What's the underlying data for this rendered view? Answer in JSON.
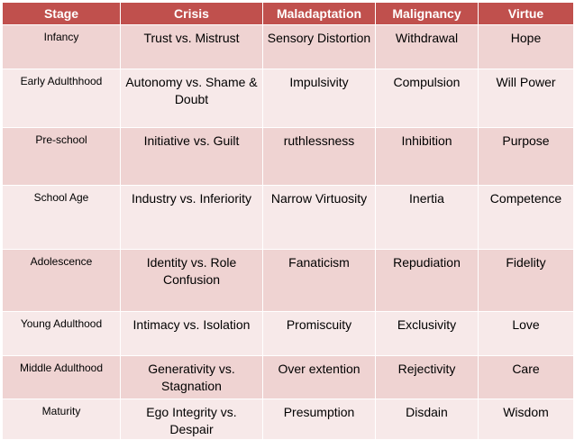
{
  "headers": [
    "Stage",
    "Crisis",
    "Maladaptation",
    "Malignancy",
    "Virtue"
  ],
  "rows": [
    {
      "stage": "Infancy",
      "crisis": "Trust vs. Mistrust",
      "maladaptation": "Sensory Distortion",
      "malignancy": "Withdrawal",
      "virtue": "Hope"
    },
    {
      "stage": "Early Adulthhood",
      "crisis": "Autonomy vs. Shame & Doubt",
      "maladaptation": "Impulsivity",
      "malignancy": "Compulsion",
      "virtue": "Will Power"
    },
    {
      "stage": "Pre-school",
      "crisis": "Initiative vs. Guilt",
      "maladaptation": "ruthlessness",
      "malignancy": "Inhibition",
      "virtue": "Purpose"
    },
    {
      "stage": "School Age",
      "crisis": "Industry vs. Inferiority",
      "maladaptation": "Narrow Virtuosity",
      "malignancy": "Inertia",
      "virtue": "Competence"
    },
    {
      "stage": "Adolescence",
      "crisis": "Identity vs. Role Confusion",
      "maladaptation": "Fanaticism",
      "malignancy": "Repudiation",
      "virtue": "Fidelity"
    },
    {
      "stage": "Young Adulthood",
      "crisis": "Intimacy vs. Isolation",
      "maladaptation": "Promiscuity",
      "malignancy": "Exclusivity",
      "virtue": "Love"
    },
    {
      "stage": "Middle Adulthood",
      "crisis": "Generativity vs. Stagnation",
      "maladaptation": "Over extention",
      "malignancy": "Rejectivity",
      "virtue": "Care"
    },
    {
      "stage": "Maturity",
      "crisis": "Ego Integrity vs. Despair",
      "maladaptation": "Presumption",
      "malignancy": "Disdain",
      "virtue": "Wisdom"
    }
  ],
  "colors": {
    "header_bg": "#c0504d",
    "row_odd_bg": "#efd3d2",
    "row_even_bg": "#f7e9e9"
  }
}
